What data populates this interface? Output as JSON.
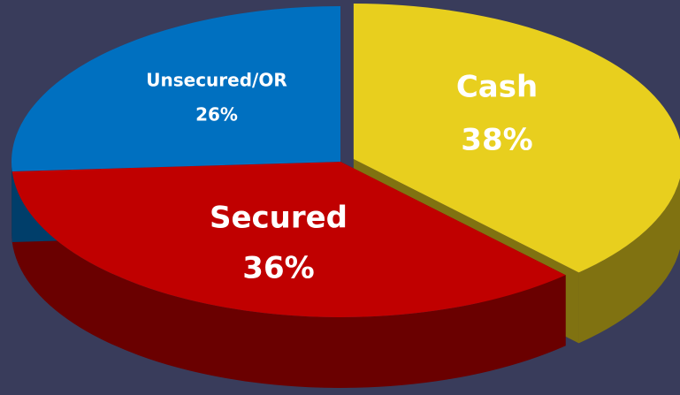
{
  "chart_data": {
    "type": "pie3d",
    "categories": [
      "Cash",
      "Secured",
      "Unsecured/OR"
    ],
    "values": [
      38,
      36,
      26
    ],
    "value_labels": [
      "38%",
      "36%",
      "26%"
    ],
    "colors": [
      "#e8cf1e",
      "#c00000",
      "#0070c0"
    ]
  }
}
